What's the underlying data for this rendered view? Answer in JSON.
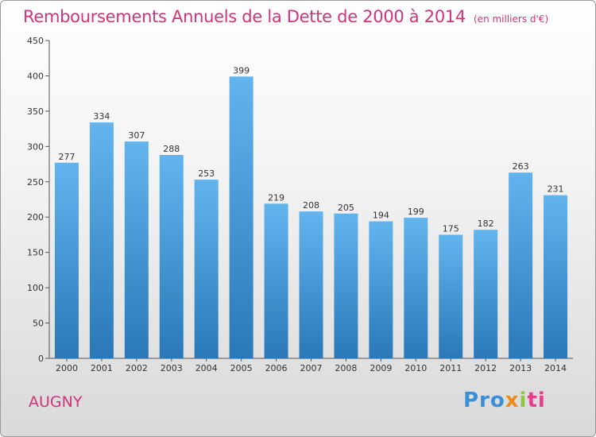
{
  "title": "Remboursements Annuels de la Dette de 2000 à 2014",
  "subtitle": "(en milliers d'€)",
  "commune": "AUGNY",
  "logo": {
    "p1": "Pro",
    "p2": "x",
    "p3": "i",
    "p4": "ti"
  },
  "colors": {
    "accent": "#d1327a",
    "bar_top": "#62b4ee",
    "bar_bottom": "#2a78b8"
  },
  "chart_data": {
    "type": "bar",
    "title": "Remboursements Annuels de la Dette de 2000 à 2014",
    "subtitle": "(en milliers d'€)",
    "xlabel": "",
    "ylabel": "",
    "categories": [
      "2000",
      "2001",
      "2002",
      "2003",
      "2004",
      "2005",
      "2006",
      "2007",
      "2008",
      "2009",
      "2010",
      "2011",
      "2012",
      "2013",
      "2014"
    ],
    "values": [
      277,
      334,
      307,
      288,
      253,
      399,
      219,
      208,
      205,
      194,
      199,
      175,
      182,
      263,
      231
    ],
    "ylim": [
      0,
      450
    ],
    "yticks": [
      0,
      50,
      100,
      150,
      200,
      250,
      300,
      350,
      400,
      450
    ],
    "grid": false,
    "data_labels": true
  }
}
